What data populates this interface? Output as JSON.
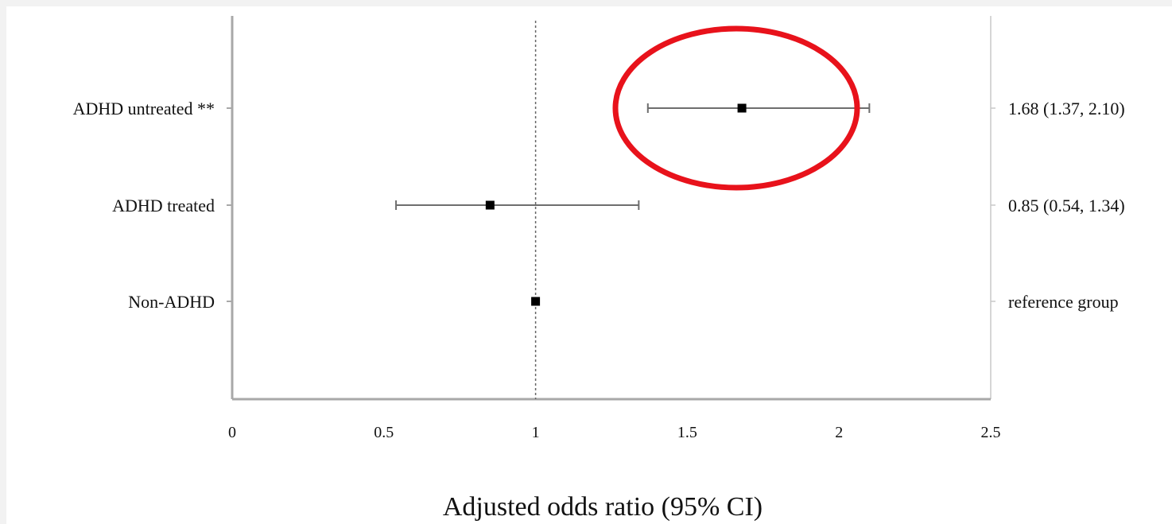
{
  "chart_data": {
    "type": "forest",
    "title": "",
    "xlabel": "Adjusted odds ratio (95% CI)",
    "xlim": [
      0,
      2.5
    ],
    "xticks": [
      0,
      0.5,
      1,
      1.5,
      2,
      2.5
    ],
    "xtick_labels": [
      "0",
      "0.5",
      "1",
      "1.5",
      "2",
      "2.5"
    ],
    "reference_value": 1,
    "grid": false,
    "categories": [
      "ADHD untreated **",
      "ADHD treated",
      "Non-ADHD"
    ],
    "estimates": [
      1.68,
      0.85,
      1.0
    ],
    "ci_lower": [
      1.37,
      0.54,
      null
    ],
    "ci_upper": [
      2.1,
      1.34,
      null
    ],
    "ci_labels": [
      "1.68 (1.37, 2.10)",
      "0.85 (0.54, 1.34)",
      "reference group"
    ],
    "highlight": {
      "category": "ADHD untreated **",
      "shape": "ellipse",
      "color": "#e8121b"
    }
  },
  "colors": {
    "axis": "#a8a8a8",
    "marker": "#000000",
    "ci_line": "#6e6e6e",
    "reference_line": "#666666"
  }
}
